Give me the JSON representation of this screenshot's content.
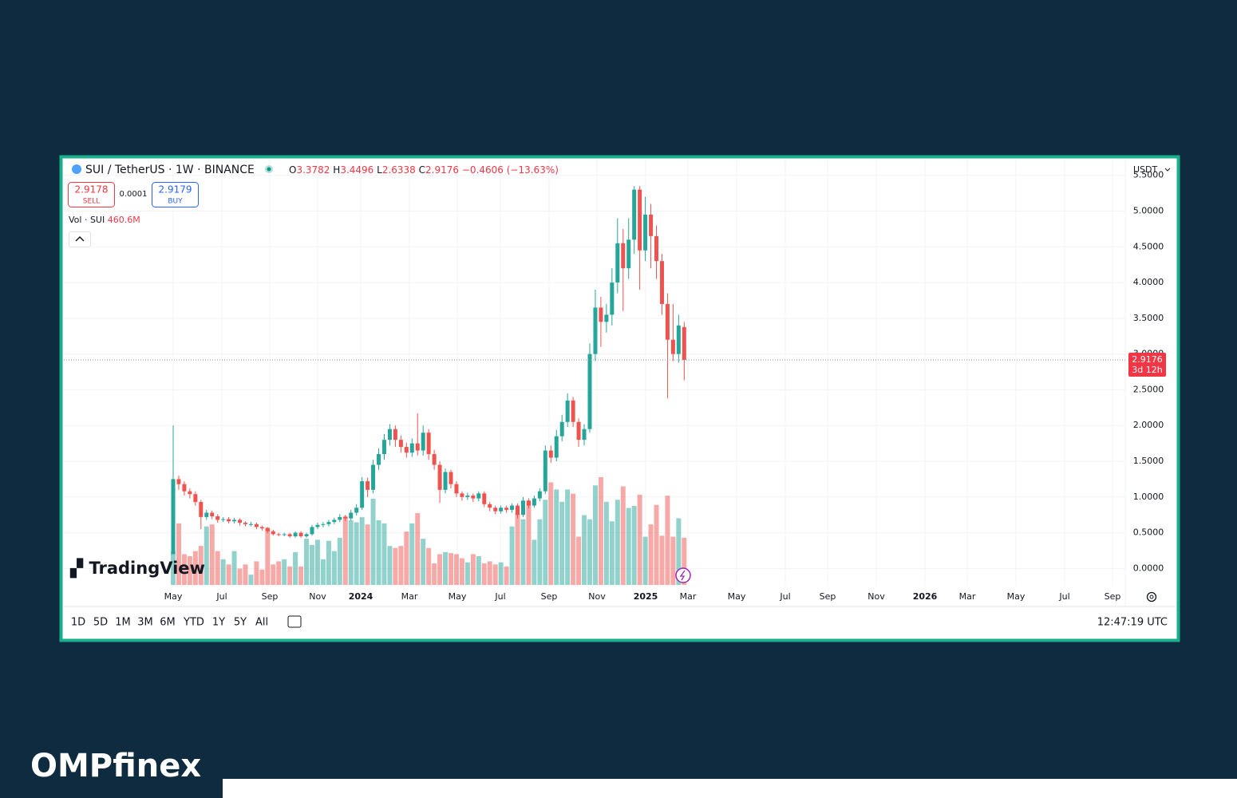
{
  "chart_data": {
    "type": "candlestick",
    "title": "SUI / TetherUS · 1W · BINANCE",
    "ohlc_labels": [
      "O",
      "H",
      "L",
      "C"
    ],
    "change_label": "−0.4606 (−13.63%)",
    "sell_price": "2.9178",
    "sell_label": "SELL",
    "spread": "0.0001",
    "buy_price": "2.9179",
    "buy_label": "BUY",
    "volume_title": "Vol · SUI",
    "last_volume_label": "460.6M",
    "currency": "USDT",
    "countdown": "3d 12h",
    "up_color": "#26a69a",
    "down_color": "#ef5350",
    "open": [
      0.2,
      1.25,
      1.18,
      1.08,
      1.04,
      0.93,
      0.72,
      0.78,
      0.73,
      0.68,
      0.69,
      0.66,
      0.68,
      0.64,
      0.62,
      0.62,
      0.58,
      0.56,
      0.52,
      0.48,
      0.47,
      0.48,
      0.45,
      0.5,
      0.45,
      0.48,
      0.58,
      0.61,
      0.62,
      0.65,
      0.68,
      0.72,
      0.7,
      0.78,
      0.85,
      1.22,
      1.1,
      1.45,
      1.6,
      1.8,
      1.95,
      1.8,
      1.7,
      1.62,
      1.75,
      1.65,
      1.9,
      1.6,
      1.45,
      1.1,
      1.35,
      1.18,
      1.05,
      1.0,
      1.02,
      0.98,
      1.05,
      0.9,
      0.85,
      0.8,
      0.85,
      0.82,
      0.88,
      0.75,
      0.95,
      0.88,
      0.98,
      1.08,
      1.65,
      1.55,
      1.85,
      2.05,
      2.35,
      2.05,
      1.8,
      1.95,
      3.0,
      3.65,
      3.45,
      3.55,
      4.0,
      4.55,
      4.2,
      4.6,
      5.3,
      4.45,
      4.95,
      4.65,
      4.3,
      3.7,
      3.2,
      3.0,
      3.3782
    ],
    "high": [
      2.0,
      1.3,
      1.22,
      1.12,
      1.08,
      0.96,
      0.82,
      0.81,
      0.76,
      0.72,
      0.72,
      0.71,
      0.7,
      0.66,
      0.65,
      0.64,
      0.6,
      0.58,
      0.54,
      0.5,
      0.5,
      0.5,
      0.52,
      0.52,
      0.5,
      0.61,
      0.64,
      0.65,
      0.68,
      0.71,
      0.76,
      0.75,
      0.82,
      0.9,
      1.28,
      1.27,
      1.52,
      1.68,
      1.88,
      2.02,
      2.0,
      1.86,
      1.76,
      1.82,
      2.17,
      2.0,
      1.95,
      1.66,
      1.5,
      1.4,
      1.38,
      1.22,
      1.08,
      1.06,
      1.05,
      1.08,
      1.08,
      0.93,
      0.88,
      0.88,
      0.88,
      0.91,
      0.91,
      1.0,
      0.98,
      1.02,
      1.12,
      1.72,
      1.72,
      1.94,
      2.15,
      2.45,
      2.4,
      2.1,
      2.02,
      3.15,
      3.9,
      3.8,
      3.7,
      4.2,
      4.9,
      4.75,
      4.9,
      5.35,
      5.35,
      5.2,
      5.1,
      4.8,
      4.4,
      3.85,
      3.7,
      3.55,
      3.4496
    ],
    "low": [
      0.2,
      1.1,
      1.02,
      0.98,
      0.88,
      0.55,
      0.68,
      0.69,
      0.64,
      0.65,
      0.63,
      0.63,
      0.6,
      0.59,
      0.59,
      0.55,
      0.53,
      0.49,
      0.46,
      0.45,
      0.45,
      0.43,
      0.43,
      0.43,
      0.43,
      0.46,
      0.55,
      0.58,
      0.59,
      0.62,
      0.65,
      0.66,
      0.67,
      0.74,
      0.82,
      1.0,
      1.05,
      1.38,
      1.52,
      1.72,
      1.7,
      1.62,
      1.55,
      1.56,
      1.58,
      1.58,
      1.52,
      1.38,
      0.92,
      1.05,
      1.12,
      1.0,
      0.95,
      0.96,
      0.93,
      0.94,
      0.86,
      0.8,
      0.76,
      0.77,
      0.78,
      0.78,
      0.7,
      0.72,
      0.84,
      0.85,
      0.94,
      1.04,
      1.48,
      1.5,
      1.78,
      1.98,
      1.98,
      1.7,
      1.72,
      1.9,
      2.9,
      3.1,
      3.3,
      3.4,
      3.85,
      3.6,
      4.05,
      4.4,
      3.9,
      4.3,
      4.2,
      4.05,
      3.55,
      2.38,
      2.9,
      2.88,
      2.6338
    ],
    "close": [
      1.25,
      1.18,
      1.08,
      1.04,
      0.93,
      0.72,
      0.78,
      0.73,
      0.68,
      0.69,
      0.66,
      0.68,
      0.64,
      0.62,
      0.62,
      0.58,
      0.56,
      0.52,
      0.48,
      0.47,
      0.48,
      0.45,
      0.5,
      0.45,
      0.48,
      0.58,
      0.61,
      0.62,
      0.65,
      0.68,
      0.72,
      0.7,
      0.78,
      0.85,
      1.22,
      1.1,
      1.45,
      1.6,
      1.8,
      1.95,
      1.8,
      1.7,
      1.62,
      1.75,
      1.65,
      1.9,
      1.6,
      1.45,
      1.1,
      1.35,
      1.18,
      1.05,
      1.0,
      1.02,
      0.98,
      1.05,
      0.9,
      0.85,
      0.8,
      0.85,
      0.82,
      0.88,
      0.75,
      0.95,
      0.88,
      0.98,
      1.08,
      1.65,
      1.55,
      1.85,
      2.05,
      2.35,
      2.05,
      1.8,
      1.95,
      3.0,
      3.65,
      3.45,
      3.55,
      4.0,
      4.55,
      4.2,
      4.6,
      5.3,
      4.45,
      4.95,
      4.65,
      4.3,
      3.7,
      3.2,
      3.0,
      3.4,
      2.9176
    ],
    "volume": [
      330,
      600,
      300,
      280,
      330,
      380,
      570,
      590,
      330,
      250,
      200,
      330,
      160,
      200,
      100,
      230,
      150,
      560,
      200,
      230,
      250,
      180,
      320,
      180,
      450,
      390,
      440,
      250,
      430,
      330,
      460,
      670,
      630,
      610,
      660,
      590,
      840,
      630,
      600,
      380,
      360,
      380,
      520,
      600,
      700,
      450,
      360,
      210,
      300,
      320,
      310,
      300,
      260,
      220,
      300,
      280,
      210,
      230,
      200,
      220,
      180,
      570,
      700,
      640,
      820,
      440,
      640,
      830,
      1000,
      930,
      810,
      930,
      890,
      470,
      680,
      640,
      970,
      1050,
      810,
      620,
      830,
      960,
      750,
      770,
      880,
      470,
      590,
      780,
      480,
      870,
      470,
      650,
      460.6
    ],
    "ylim": [
      -0.42,
      5.72
    ],
    "yticks": [
      {
        "value": 0,
        "label": "0.0000"
      },
      {
        "value": 0.5,
        "label": "0.5000"
      },
      {
        "value": 1,
        "label": "1.0000"
      },
      {
        "value": 1.5,
        "label": "1.5000"
      },
      {
        "value": 2,
        "label": "2.0000"
      },
      {
        "value": 2.5,
        "label": "2.5000"
      },
      {
        "value": 3,
        "label": "3.0000"
      },
      {
        "value": 3.5,
        "label": "3.5000"
      },
      {
        "value": 4,
        "label": "4.0000"
      },
      {
        "value": 4.5,
        "label": "4.5000"
      },
      {
        "value": 5,
        "label": "5.0000"
      },
      {
        "value": 5.5,
        "label": "5.5000"
      }
    ],
    "xtick_labels": [
      "May",
      "Jul",
      "Sep",
      "Nov",
      "2024",
      "Mar",
      "May",
      "Jul",
      "Sep",
      "Nov",
      "2025",
      "Mar",
      "May",
      "Jul",
      "Sep",
      "Nov",
      "2026",
      "Mar",
      "May",
      "Jul",
      "Sep"
    ],
    "grid": true,
    "timeframes": [
      "1D",
      "5D",
      "1M",
      "3M",
      "6M",
      "YTD",
      "1Y",
      "5Y",
      "All"
    ],
    "clock": "12:47:19 UTC",
    "watermark": "TradingView"
  },
  "brand": "OMPfinex"
}
